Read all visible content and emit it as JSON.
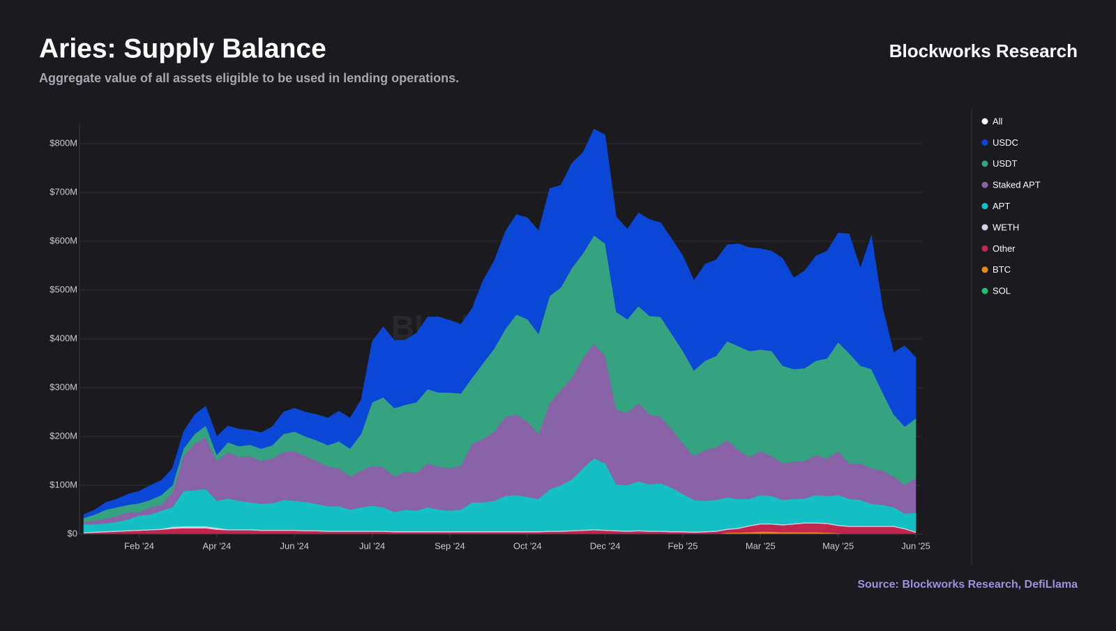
{
  "chart_data": {
    "type": "stacked_area",
    "title": "Aries: Supply Balance",
    "subtitle": "Aggregate value of all assets eligible to be used in lending operations.",
    "brand": "Blockworks Research",
    "watermark": "Blockworks Research",
    "source": "Source: Blockworks Research, DefiLlama",
    "legend_extra": {
      "name": "All",
      "color": "#ffffff"
    },
    "grid": true,
    "legend": "right",
    "categories": [
      null,
      null,
      null,
      null,
      null,
      "Feb '24",
      null,
      null,
      null,
      null,
      null,
      null,
      "Apr '24",
      null,
      null,
      null,
      null,
      null,
      null,
      "Jun '24",
      null,
      null,
      null,
      null,
      null,
      null,
      "Jul '24",
      null,
      null,
      null,
      null,
      null,
      null,
      "Sep '24",
      null,
      null,
      null,
      null,
      null,
      null,
      "Oct '24",
      null,
      null,
      null,
      null,
      null,
      null,
      "Dec '24",
      null,
      null,
      null,
      null,
      null,
      null,
      "Feb '25",
      null,
      null,
      null,
      null,
      null,
      null,
      "Mar '25",
      null,
      null,
      null,
      null,
      null,
      null,
      "May '25",
      null,
      null,
      null,
      null,
      null,
      null,
      "Jun '25"
    ],
    "ylim": [
      0,
      830
    ],
    "yticks": [
      {
        "value": 0,
        "label": "$0"
      },
      {
        "value": 100,
        "label": "$100M"
      },
      {
        "value": 200,
        "label": "$200M"
      },
      {
        "value": 300,
        "label": "$300M"
      },
      {
        "value": 400,
        "label": "$400M"
      },
      {
        "value": 500,
        "label": "$500M"
      },
      {
        "value": 600,
        "label": "$600M"
      },
      {
        "value": 700,
        "label": "$700M"
      },
      {
        "value": 800,
        "label": "$800M"
      }
    ],
    "series": [
      {
        "name": "USDC",
        "color": "#0b47d6",
        "values": [
          7,
          10,
          15,
          17,
          22,
          25,
          30,
          30,
          35,
          35,
          40,
          40,
          38,
          34,
          35,
          30,
          33,
          38,
          45,
          48,
          50,
          53,
          56,
          62,
          63,
          70,
          125,
          145,
          139,
          133,
          142,
          148,
          155,
          148,
          142,
          142,
          170,
          180,
          200,
          205,
          208,
          212,
          220,
          210,
          215,
          207,
          218,
          223,
          195,
          185,
          191,
          198,
          193,
          195,
          195,
          185,
          198,
          197,
          198,
          210,
          212,
          207,
          205,
          220,
          187,
          200,
          215,
          220,
          224,
          245,
          200,
          274,
          175,
          127,
          166,
          125
        ]
      },
      {
        "name": "USDT",
        "color": "#35a37f",
        "values": [
          8,
          12,
          18,
          18,
          15,
          18,
          15,
          20,
          15,
          15,
          20,
          24,
          12,
          20,
          22,
          23,
          25,
          27,
          37,
          40,
          40,
          42,
          44,
          55,
          57,
          75,
          130,
          143,
          140,
          137,
          145,
          152,
          152,
          155,
          148,
          135,
          155,
          170,
          180,
          205,
          210,
          205,
          220,
          210,
          225,
          215,
          222,
          230,
          200,
          192,
          199,
          202,
          205,
          195,
          190,
          175,
          183,
          187,
          202,
          213,
          217,
          208,
          215,
          200,
          190,
          190,
          193,
          205,
          223,
          225,
          200,
          203,
          160,
          127,
          120,
          122
        ]
      },
      {
        "name": "Staked APT",
        "color": "#8a62a8",
        "values": [
          5,
          8,
          10,
          12,
          15,
          7,
          15,
          12,
          30,
          72,
          95,
          106,
          82,
          95,
          90,
          95,
          88,
          92,
          98,
          102,
          94,
          88,
          81,
          78,
          68,
          75,
          82,
          82,
          73,
          78,
          77,
          90,
          88,
          87,
          90,
          120,
          130,
          142,
          162,
          165,
          154,
          133,
          176,
          195,
          208,
          225,
          235,
          220,
          153,
          148,
          160,
          143,
          136,
          120,
          103,
          90,
          104,
          108,
          118,
          100,
          86,
          90,
          82,
          75,
          76,
          77,
          82,
          77,
          90,
          73,
          75,
          73,
          70,
          63,
          58,
          71
        ]
      },
      {
        "name": "APT",
        "color": "#15c0c4",
        "values": [
          16,
          15,
          16,
          18,
          22,
          29,
          30,
          37,
          40,
          72,
          74,
          76,
          55,
          63,
          58,
          55,
          53,
          54,
          61,
          59,
          58,
          54,
          50,
          50,
          43,
          48,
          51,
          48,
          39,
          44,
          42,
          49,
          44,
          42,
          44,
          59,
          59,
          62,
          72,
          74,
          70,
          66,
          85,
          93,
          104,
          126,
          145,
          136,
          94,
          93,
          100,
          95,
          97,
          89,
          76,
          65,
          62,
          63,
          64,
          59,
          54,
          58,
          56,
          50,
          50,
          49,
          56,
          55,
          61,
          55,
          53,
          45,
          43,
          38,
          30,
          39
        ]
      },
      {
        "name": "WETH",
        "color": "#d8d0e0",
        "values": [
          2,
          2,
          2,
          2,
          2,
          2,
          2,
          2,
          4,
          4,
          4,
          4,
          4,
          2,
          2,
          2,
          2,
          2,
          2,
          2,
          2,
          2,
          2,
          2,
          2,
          2,
          2,
          2,
          2,
          2,
          2,
          2,
          2,
          2,
          2,
          2,
          2,
          2,
          2,
          2,
          2,
          2,
          2,
          2,
          2,
          2,
          2,
          2,
          2,
          2,
          2,
          2,
          2,
          2,
          2,
          2,
          2,
          2,
          2,
          2,
          2,
          2,
          2,
          2,
          2,
          2,
          2,
          2,
          2,
          2,
          2,
          2,
          2,
          2,
          2,
          2
        ]
      },
      {
        "name": "Other",
        "color": "#c2264f",
        "values": [
          2,
          3,
          4,
          5,
          6,
          7,
          8,
          9,
          11,
          12,
          12,
          12,
          9,
          8,
          8,
          8,
          7,
          7,
          7,
          7,
          6,
          6,
          5,
          5,
          5,
          5,
          5,
          5,
          4,
          4,
          4,
          4,
          4,
          4,
          4,
          4,
          4,
          4,
          4,
          4,
          4,
          4,
          5,
          5,
          6,
          7,
          8,
          7,
          6,
          5,
          6,
          5,
          5,
          4,
          4,
          3,
          4,
          5,
          6,
          8,
          12,
          15,
          15,
          14,
          16,
          18,
          18,
          18,
          15,
          15,
          15,
          15,
          15,
          15,
          10,
          3
        ]
      },
      {
        "name": "BTC",
        "color": "#e88a1a",
        "values": [
          0,
          0,
          0,
          0,
          0,
          0,
          0,
          0,
          0,
          0,
          0,
          0,
          0,
          0,
          0,
          0,
          0,
          0,
          0,
          0,
          0,
          0,
          0,
          0,
          0,
          0,
          0,
          0,
          0,
          0,
          0,
          0,
          0,
          0,
          0,
          0,
          0,
          0,
          0,
          0,
          0,
          0,
          0,
          0,
          0,
          0,
          0,
          0,
          0,
          0,
          0,
          0,
          0,
          0,
          0,
          0,
          0,
          0,
          3,
          3,
          4,
          5,
          5,
          4,
          4,
          4,
          4,
          3,
          2,
          0,
          0,
          0,
          0,
          0,
          0,
          0
        ]
      },
      {
        "name": "SOL",
        "color": "#18c26e",
        "values": [
          0,
          0,
          0,
          0,
          0,
          0,
          0,
          0,
          0,
          0,
          0,
          0,
          0,
          0,
          0,
          0,
          0,
          0,
          0,
          0,
          0,
          0,
          0,
          0,
          0,
          0,
          0,
          0,
          0,
          0,
          0,
          0,
          0,
          0,
          0,
          0,
          0,
          0,
          0,
          0,
          0,
          0,
          0,
          0,
          0,
          0,
          0,
          0,
          0,
          0,
          0,
          0,
          0,
          0,
          0,
          0,
          0,
          0,
          0,
          0,
          0,
          0,
          0,
          0,
          0,
          0,
          0,
          0,
          0,
          0,
          0,
          0,
          0,
          0,
          0,
          0
        ]
      }
    ]
  }
}
